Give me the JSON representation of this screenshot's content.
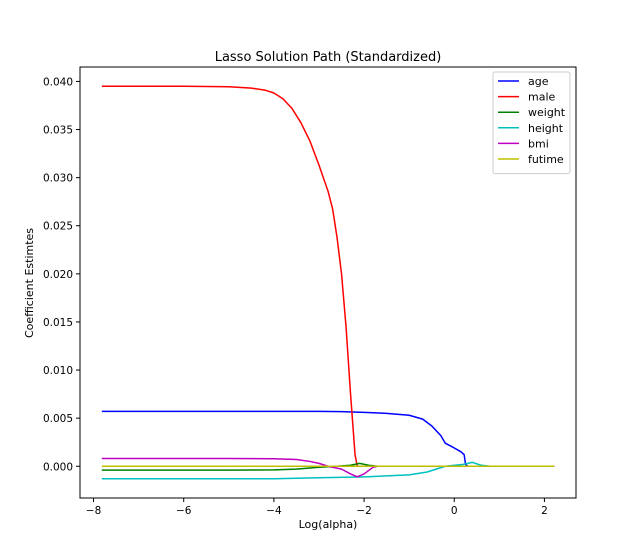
{
  "chart_data": {
    "type": "line",
    "title": "Lasso Solution Path (Standardized)",
    "xlabel": "Log(alpha)",
    "ylabel": "Coefficient Estimtes",
    "xlim": [
      -8.3,
      2.7
    ],
    "ylim": [
      -0.0033,
      0.0415
    ],
    "xticks": [
      -8,
      -6,
      -4,
      -2,
      0,
      2
    ],
    "xtick_labels": [
      "−8",
      "−6",
      "−4",
      "−2",
      "0",
      "2"
    ],
    "yticks": [
      0.0,
      0.005,
      0.01,
      0.015,
      0.02,
      0.025,
      0.03,
      0.035,
      0.04
    ],
    "ytick_labels": [
      "0.000",
      "0.005",
      "0.010",
      "0.015",
      "0.020",
      "0.025",
      "0.030",
      "0.035",
      "0.040"
    ],
    "grid": false,
    "legend_position": "top-right",
    "series": [
      {
        "name": "age",
        "color": "#0000ff",
        "points": [
          [
            -7.8,
            0.0057
          ],
          [
            -5.0,
            0.0057
          ],
          [
            -3.0,
            0.0057
          ],
          [
            -2.5,
            0.00568
          ],
          [
            -2.0,
            0.0056
          ],
          [
            -1.5,
            0.0055
          ],
          [
            -1.0,
            0.0053
          ],
          [
            -0.7,
            0.0049
          ],
          [
            -0.5,
            0.0042
          ],
          [
            -0.3,
            0.0032
          ],
          [
            -0.2,
            0.0024
          ],
          [
            0.0,
            0.0019
          ],
          [
            0.15,
            0.0015
          ],
          [
            0.22,
            0.0012
          ],
          [
            0.25,
            0.0002
          ],
          [
            0.3,
            0.0
          ],
          [
            2.2,
            0.0
          ]
        ]
      },
      {
        "name": "male",
        "color": "#ff0000",
        "points": [
          [
            -7.8,
            0.0395
          ],
          [
            -6.0,
            0.0395
          ],
          [
            -5.0,
            0.03945
          ],
          [
            -4.5,
            0.0393
          ],
          [
            -4.2,
            0.0391
          ],
          [
            -4.0,
            0.0388
          ],
          [
            -3.8,
            0.0382
          ],
          [
            -3.6,
            0.0372
          ],
          [
            -3.4,
            0.0357
          ],
          [
            -3.2,
            0.0338
          ],
          [
            -3.0,
            0.0313
          ],
          [
            -2.8,
            0.0286
          ],
          [
            -2.7,
            0.0268
          ],
          [
            -2.6,
            0.0238
          ],
          [
            -2.5,
            0.02
          ],
          [
            -2.4,
            0.0145
          ],
          [
            -2.3,
            0.0075
          ],
          [
            -2.2,
            0.0012
          ],
          [
            -2.15,
            0.0
          ],
          [
            2.2,
            0.0
          ]
        ]
      },
      {
        "name": "weight",
        "color": "#008000",
        "points": [
          [
            -7.8,
            -0.0004
          ],
          [
            -5.0,
            -0.0004
          ],
          [
            -4.0,
            -0.00038
          ],
          [
            -3.5,
            -0.0003
          ],
          [
            -3.0,
            -0.0001
          ],
          [
            -2.6,
            0.0
          ],
          [
            -2.3,
            0.0001
          ],
          [
            -2.1,
            0.0003
          ],
          [
            -1.9,
            0.0001
          ],
          [
            -1.7,
            0.0
          ],
          [
            2.2,
            0.0
          ]
        ]
      },
      {
        "name": "height",
        "color": "#00bfbf",
        "points": [
          [
            -7.8,
            -0.0013
          ],
          [
            -4.0,
            -0.0013
          ],
          [
            -3.0,
            -0.0012
          ],
          [
            -2.0,
            -0.0011
          ],
          [
            -1.5,
            -0.001
          ],
          [
            -1.0,
            -0.0009
          ],
          [
            -0.6,
            -0.0006
          ],
          [
            -0.4,
            -0.0003
          ],
          [
            -0.2,
            0.0
          ],
          [
            0.2,
            0.0002
          ],
          [
            0.4,
            0.0004
          ],
          [
            0.6,
            0.0001
          ],
          [
            0.8,
            0.0
          ],
          [
            2.2,
            0.0
          ]
        ]
      },
      {
        "name": "bmi",
        "color": "#bf00bf",
        "points": [
          [
            -7.8,
            0.0008
          ],
          [
            -5.0,
            0.0008
          ],
          [
            -4.0,
            0.00078
          ],
          [
            -3.5,
            0.0007
          ],
          [
            -3.2,
            0.0005
          ],
          [
            -3.0,
            0.0003
          ],
          [
            -2.8,
            0.0
          ],
          [
            -2.5,
            -0.0003
          ],
          [
            -2.3,
            -0.0008
          ],
          [
            -2.15,
            -0.0011
          ],
          [
            -2.0,
            -0.0008
          ],
          [
            -1.8,
            -0.0001
          ],
          [
            -1.7,
            0.0
          ],
          [
            2.2,
            0.0
          ]
        ]
      },
      {
        "name": "futime",
        "color": "#bfbf00",
        "points": [
          [
            -7.8,
            0.0
          ],
          [
            2.2,
            0.0
          ]
        ]
      }
    ]
  }
}
